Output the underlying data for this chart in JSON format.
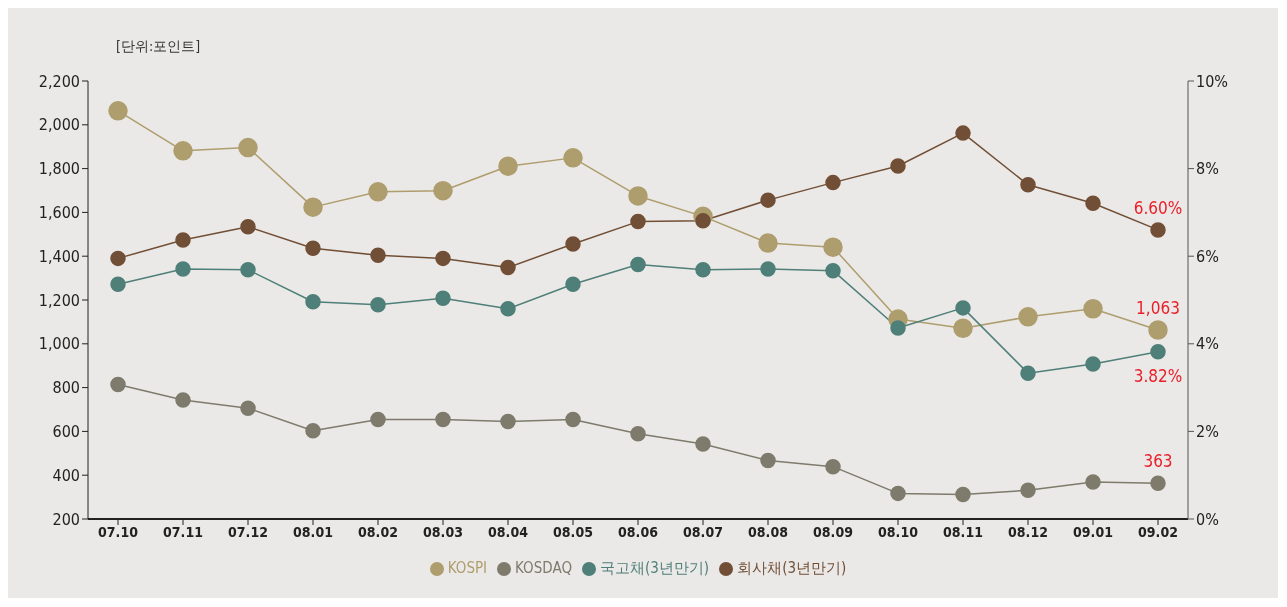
{
  "chart_data": {
    "type": "line",
    "categories": [
      "07.10",
      "07.11",
      "07.12",
      "08.01",
      "08.02",
      "08.03",
      "08.04",
      "08.05",
      "08.06",
      "08.07",
      "08.08",
      "08.09",
      "08.10",
      "08.11",
      "08.12",
      "09.01",
      "09.02"
    ],
    "series": [
      {
        "name": "KOSPI",
        "color": "#ae9d6d",
        "values": [
          2064,
          1881,
          1896,
          1624,
          1694,
          1699,
          1811,
          1849,
          1675,
          1582,
          1460,
          1441,
          1113,
          1071,
          1123,
          1160,
          1063
        ],
        "value_labels": [
          null,
          null,
          null,
          null,
          null,
          null,
          null,
          null,
          null,
          null,
          null,
          null,
          null,
          null,
          null,
          null,
          "1,063"
        ]
      },
      {
        "name": "KOSDAQ",
        "color": "#7e7a6c",
        "values": [
          814,
          743,
          706,
          603,
          654,
          654,
          645,
          654,
          589,
          542,
          467,
          439,
          317,
          312,
          331,
          369,
          363
        ],
        "value_labels": [
          null,
          null,
          null,
          null,
          null,
          null,
          null,
          null,
          null,
          null,
          null,
          null,
          null,
          null,
          null,
          null,
          "363"
        ]
      },
      {
        "name": "국고채(3년만기)",
        "color": "#4e7f78",
        "axis": "y2",
        "values": [
          5.36,
          5.71,
          5.69,
          4.96,
          4.89,
          5.04,
          4.8,
          5.36,
          5.81,
          5.69,
          5.71,
          5.67,
          4.36,
          4.82,
          3.33,
          3.54,
          3.82
        ],
        "value_labels": [
          null,
          null,
          null,
          null,
          null,
          null,
          null,
          null,
          null,
          null,
          null,
          null,
          null,
          null,
          null,
          null,
          "3.82%"
        ]
      },
      {
        "name": "회사채(3년만기)",
        "color": "#714f36",
        "axis": "y2",
        "values": [
          5.95,
          6.37,
          6.67,
          6.18,
          6.02,
          5.95,
          5.74,
          6.28,
          6.79,
          6.81,
          7.28,
          7.68,
          8.06,
          8.81,
          7.63,
          7.21,
          6.6
        ],
        "value_labels": [
          null,
          null,
          null,
          null,
          null,
          null,
          null,
          null,
          null,
          null,
          null,
          null,
          null,
          null,
          null,
          null,
          "6.60%"
        ]
      }
    ],
    "ylim": [
      200,
      2200
    ],
    "yticks": [
      {
        "value": 200,
        "label": "200"
      },
      {
        "value": 400,
        "label": "400"
      },
      {
        "value": 600,
        "label": "600"
      },
      {
        "value": 800,
        "label": "800"
      },
      {
        "value": 1000,
        "label": "1,000"
      },
      {
        "value": 1200,
        "label": "1,200"
      },
      {
        "value": 1400,
        "label": "1,400"
      },
      {
        "value": 1600,
        "label": "1,600"
      },
      {
        "value": 1800,
        "label": "1,800"
      },
      {
        "value": 2000,
        "label": "2,000"
      },
      {
        "value": 2200,
        "label": "2,200"
      }
    ],
    "y2lim": [
      0,
      10
    ],
    "y2ticks": [
      {
        "value": 0,
        "label": "0%"
      },
      {
        "value": 2,
        "label": "2%"
      },
      {
        "value": 4,
        "label": "4%"
      },
      {
        "value": 6,
        "label": "6%"
      },
      {
        "value": 8,
        "label": "8%"
      },
      {
        "value": 10,
        "label": "10%"
      }
    ],
    "annotations": [
      "[단위:포인트]"
    ],
    "grid": false,
    "legend": "bottom",
    "marker": "circle",
    "line_style": "solid"
  }
}
